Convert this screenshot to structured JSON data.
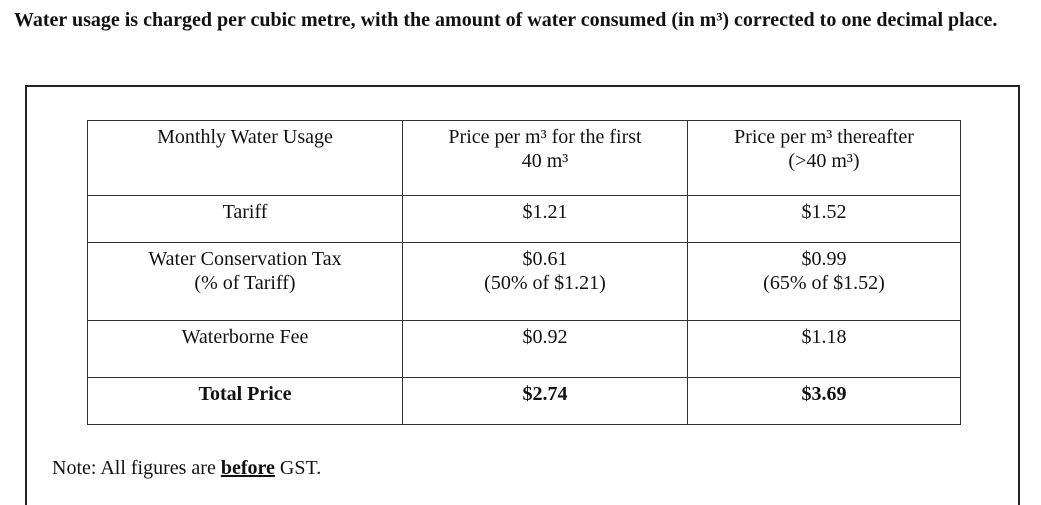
{
  "header": {
    "title": "Water usage is charged per cubic metre, with the amount of water consumed (in m³) corrected to one decimal place."
  },
  "table": {
    "header": [
      [
        "Monthly Water Usage"
      ],
      [
        "Price per m³ for the first",
        "40 m³"
      ],
      [
        "Price per m³ thereafter",
        "(>40 m³)"
      ]
    ],
    "rows": [
      [
        [
          "Tariff"
        ],
        [
          "$1.21"
        ],
        [
          "$1.52"
        ]
      ],
      [
        [
          "Water Conservation Tax",
          "(% of Tariff)"
        ],
        [
          "$0.61",
          "(50% of $1.21)"
        ],
        [
          "$0.99",
          "(65% of $1.52)"
        ]
      ],
      [
        [
          "Waterborne Fee"
        ],
        [
          "$0.92"
        ],
        [
          "$1.18"
        ]
      ],
      [
        [
          "Total Price"
        ],
        [
          "$2.74"
        ],
        [
          "$3.69"
        ]
      ]
    ]
  },
  "note": {
    "before": "Note: All figures are ",
    "emphasis": "before",
    "after": " GST."
  }
}
